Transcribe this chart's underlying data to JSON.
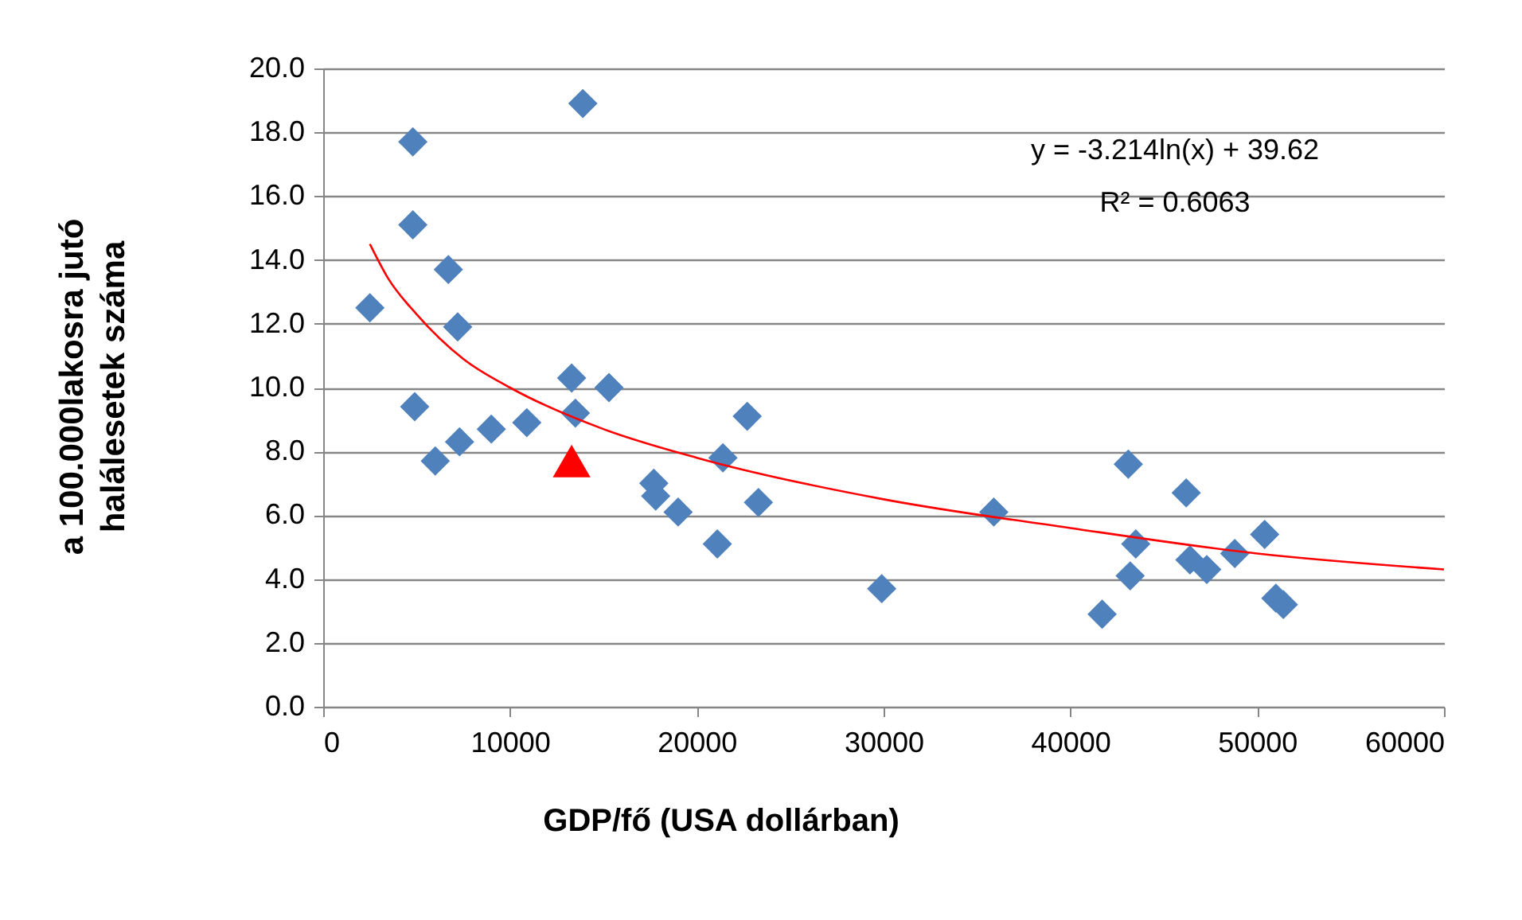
{
  "chart_data": {
    "type": "scatter",
    "xlabel": "GDP/fő (USA dollárban)",
    "ylabel": "a 100.000lakosra jutó\nhalálesetek száma",
    "annotations": [
      "y = -3.214ln(x) + 39.62",
      "R² = 0.6063"
    ],
    "xlim": [
      0,
      60000
    ],
    "xticks": [
      0,
      10000,
      20000,
      30000,
      40000,
      50000,
      60000
    ],
    "ylim": [
      0,
      20
    ],
    "yticks": [
      {
        "value": 0,
        "label": "0.0"
      },
      {
        "value": 2,
        "label": "2.0"
      },
      {
        "value": 4,
        "label": "4.0"
      },
      {
        "value": 6,
        "label": "6.0"
      },
      {
        "value": 8,
        "label": "8.0"
      },
      {
        "value": 10,
        "label": "10.0"
      },
      {
        "value": 12,
        "label": "12.0"
      },
      {
        "value": 14,
        "label": "14.0"
      },
      {
        "value": 16,
        "label": "16.0"
      },
      {
        "value": 18,
        "label": "18.0"
      },
      {
        "value": 20,
        "label": "20.0"
      }
    ],
    "grid": "y",
    "series": [
      {
        "marker": "diamond",
        "color": "#4f81bd",
        "x": [
          2500,
          4800,
          4800,
          4900,
          6000,
          6700,
          7200,
          7300,
          9000,
          10900,
          13300,
          13500,
          13900,
          15300,
          17700,
          17800,
          19000,
          21100,
          21400,
          22700,
          23300,
          29900,
          35900,
          41700,
          43100,
          43200,
          43500,
          46200,
          46400,
          47300,
          48800,
          50400,
          51000,
          51400
        ],
        "values": [
          12.5,
          17.7,
          15.1,
          9.4,
          7.7,
          13.7,
          11.9,
          8.3,
          8.7,
          8.9,
          10.3,
          9.2,
          18.9,
          10.0,
          7.0,
          6.6,
          6.1,
          5.1,
          7.8,
          9.1,
          6.4,
          3.7,
          6.1,
          2.9,
          7.6,
          4.1,
          5.1,
          6.7,
          4.6,
          4.3,
          4.8,
          5.4,
          3.4,
          3.2
        ]
      },
      {
        "marker": "triangle",
        "color": "#ff0000",
        "x": [
          13300
        ],
        "values": [
          7.7
        ]
      },
      {
        "type": "line",
        "color": "#ff0000",
        "x": [
          2500,
          3500,
          5000,
          7500,
          10000,
          15000,
          20000,
          30000,
          40000,
          50000,
          60000
        ],
        "values": [
          14.5,
          13.4,
          12.3,
          10.9,
          10.0,
          8.7,
          7.8,
          6.5,
          5.6,
          4.8,
          4.3
        ]
      }
    ]
  }
}
